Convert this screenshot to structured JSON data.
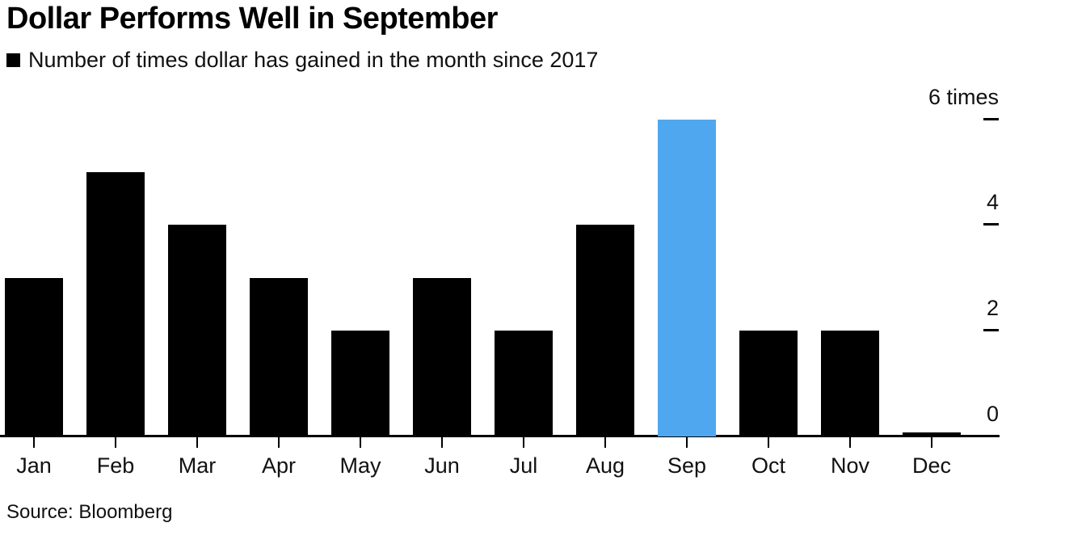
{
  "header": {
    "title": "Dollar Performs Well in September",
    "legend_label": "Number of times dollar has gained in the month since 2017"
  },
  "footer": {
    "source": "Source: Bloomberg"
  },
  "colors": {
    "bar": "#000000",
    "highlight": "#4fa8ef",
    "axis": "#000000",
    "text": "#111111"
  },
  "chart_data": {
    "type": "bar",
    "title": "Dollar Performs Well in September",
    "legend": "Number of times dollar has gained in the month since 2017",
    "categories": [
      "Jan",
      "Feb",
      "Mar",
      "Apr",
      "May",
      "Jun",
      "Jul",
      "Aug",
      "Sep",
      "Oct",
      "Nov",
      "Dec"
    ],
    "values": [
      3,
      5,
      4,
      3,
      2,
      3,
      2,
      4,
      6,
      2,
      2,
      0
    ],
    "highlight_category": "Sep",
    "highlight_value": 6,
    "ylim": [
      0,
      6
    ],
    "yticks": [
      {
        "value": 0,
        "label": "0"
      },
      {
        "value": 2,
        "label": "2"
      },
      {
        "value": 4,
        "label": "4"
      },
      {
        "value": 6,
        "label": "6 times"
      }
    ],
    "ylabel": "",
    "xlabel": "",
    "grid": false,
    "legend_position": "top-left",
    "axis_side": "right",
    "source": "Source: Bloomberg"
  }
}
